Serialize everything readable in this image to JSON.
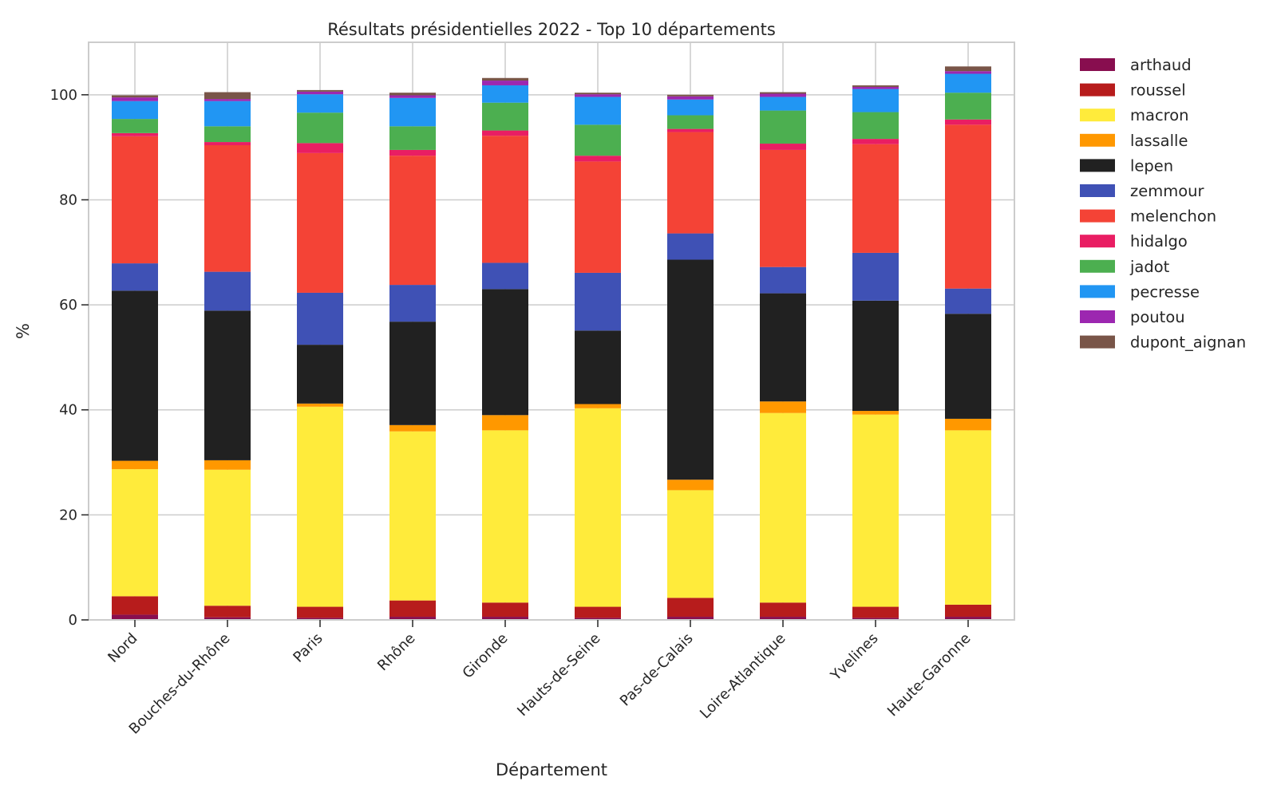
{
  "chart_data": {
    "type": "bar",
    "stacked": true,
    "title": "Résultats présidentielles 2022 - Top 10 départements",
    "xlabel": "Département",
    "ylabel": "%",
    "ylim": [
      0,
      110
    ],
    "yticks": [
      0,
      20,
      40,
      60,
      80,
      100
    ],
    "grid": true,
    "legend_position": "outside-right",
    "categories": [
      "Nord",
      "Bouches-du-Rhône",
      "Paris",
      "Rhône",
      "Gironde",
      "Hauts-de-Seine",
      "Pas-de-Calais",
      "Loire-Atlantique",
      "Yvelines",
      "Haute-Garonne"
    ],
    "series": [
      {
        "name": "arthaud",
        "color": "#880e4f",
        "values": [
          1.0,
          0.5,
          0.4,
          0.6,
          0.6,
          0.4,
          0.6,
          0.6,
          0.4,
          0.6
        ]
      },
      {
        "name": "roussel",
        "color": "#b71c1c",
        "values": [
          3.5,
          2.2,
          2.1,
          3.1,
          2.7,
          2.1,
          3.6,
          2.7,
          2.1,
          2.3
        ]
      },
      {
        "name": "macron",
        "color": "#ffeb3b",
        "values": [
          24.2,
          25.9,
          38.1,
          32.2,
          32.8,
          37.8,
          20.5,
          36.1,
          36.6,
          33.2
        ]
      },
      {
        "name": "lassalle",
        "color": "#ff9800",
        "values": [
          1.6,
          1.8,
          0.6,
          1.2,
          2.9,
          0.8,
          2.0,
          2.2,
          0.7,
          2.2
        ]
      },
      {
        "name": "lepen",
        "color": "#212121",
        "values": [
          32.4,
          28.5,
          11.2,
          19.7,
          24.0,
          14.0,
          41.9,
          20.6,
          21.0,
          20.0
        ]
      },
      {
        "name": "zemmour",
        "color": "#3f51b5",
        "values": [
          5.2,
          7.4,
          9.9,
          7.0,
          5.0,
          11.0,
          5.0,
          5.0,
          9.1,
          4.8
        ]
      },
      {
        "name": "melenchon",
        "color": "#f44336",
        "values": [
          24.2,
          24.1,
          26.6,
          24.6,
          24.2,
          21.2,
          19.3,
          22.3,
          20.7,
          31.2
        ]
      },
      {
        "name": "hidalgo",
        "color": "#e91e63",
        "values": [
          0.6,
          0.6,
          1.9,
          1.1,
          1.0,
          1.1,
          0.6,
          1.2,
          1.0,
          1.0
        ]
      },
      {
        "name": "jadot",
        "color": "#4caf50",
        "values": [
          2.7,
          3.0,
          5.8,
          4.5,
          5.3,
          5.9,
          2.6,
          6.3,
          5.1,
          5.1
        ]
      },
      {
        "name": "pecresse",
        "color": "#2196f3",
        "values": [
          3.4,
          4.8,
          3.5,
          5.4,
          3.3,
          5.3,
          3.0,
          2.6,
          4.4,
          3.6
        ]
      },
      {
        "name": "poutou",
        "color": "#9c27b0",
        "values": [
          0.7,
          0.4,
          0.5,
          0.5,
          0.9,
          0.5,
          0.6,
          0.6,
          0.4,
          0.5
        ]
      },
      {
        "name": "dupont_aignan",
        "color": "#795548",
        "values": [
          0.4,
          1.3,
          0.3,
          0.5,
          0.5,
          0.3,
          0.3,
          0.3,
          0.3,
          0.9
        ]
      }
    ]
  }
}
